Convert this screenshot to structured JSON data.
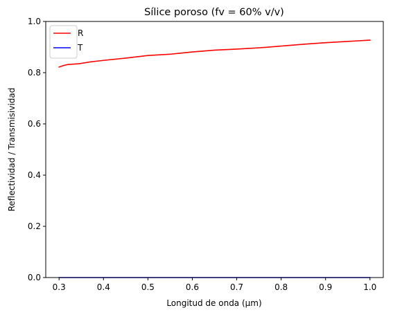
{
  "chart_data": {
    "type": "line",
    "title": "Sílice poroso (fv = 60% v/v)",
    "xlabel": "Longitud de onda (μm)",
    "ylabel": "Reflectividad / Transmisividad",
    "xlim": [
      0.27,
      1.03
    ],
    "ylim": [
      0,
      1.0
    ],
    "xticks": [
      "0.3",
      "0.4",
      "0.5",
      "0.6",
      "0.7",
      "0.8",
      "0.9",
      "1.0"
    ],
    "xtick_values": [
      0.3,
      0.4,
      0.5,
      0.6,
      0.7,
      0.8,
      0.9,
      1.0
    ],
    "yticks": [
      "0.0",
      "0.2",
      "0.4",
      "0.6",
      "0.8",
      "1.0"
    ],
    "ytick_values": [
      0.0,
      0.2,
      0.4,
      0.6,
      0.8,
      1.0
    ],
    "grid": false,
    "legend_position": "top-left",
    "series": [
      {
        "name": "R",
        "color": "#ff0000",
        "x": [
          0.3,
          0.31,
          0.32,
          0.345,
          0.37,
          0.4,
          0.45,
          0.5,
          0.55,
          0.6,
          0.65,
          0.7,
          0.75,
          0.8,
          0.85,
          0.9,
          0.95,
          1.0
        ],
        "y": [
          0.822,
          0.828,
          0.832,
          0.835,
          0.842,
          0.848,
          0.857,
          0.867,
          0.872,
          0.881,
          0.888,
          0.892,
          0.897,
          0.904,
          0.911,
          0.917,
          0.922,
          0.927
        ]
      },
      {
        "name": "T",
        "color": "#0000ff",
        "x": [
          0.3,
          0.4,
          0.5,
          0.6,
          0.7,
          0.8,
          0.9,
          1.0
        ],
        "y": [
          0.0,
          0.0,
          0.0,
          0.0,
          0.0,
          0.0,
          0.0,
          0.0
        ]
      }
    ]
  }
}
